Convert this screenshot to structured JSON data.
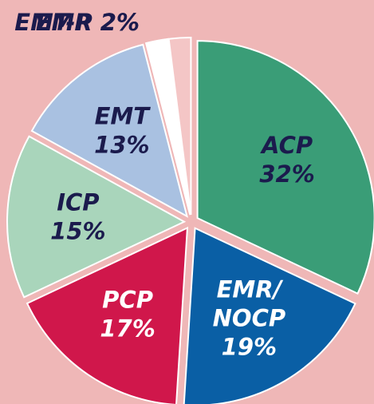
{
  "chart_data": {
    "type": "pie",
    "categories": [
      "ACP",
      "EMR/NOCP",
      "PCP",
      "ICP",
      "EMT",
      "EMR",
      "EMT-P"
    ],
    "values": [
      32,
      19,
      17,
      15,
      13,
      2,
      2
    ],
    "value_labels": [
      "32%",
      "19%",
      "17%",
      "15%",
      "13%",
      "2%",
      "2%"
    ],
    "colors": [
      "#3a9d77",
      "#0a5fa5",
      "#d0174b",
      "#a9d5bb",
      "#a9c1e1",
      "#ffffff",
      "#f4c6c6"
    ]
  }
}
